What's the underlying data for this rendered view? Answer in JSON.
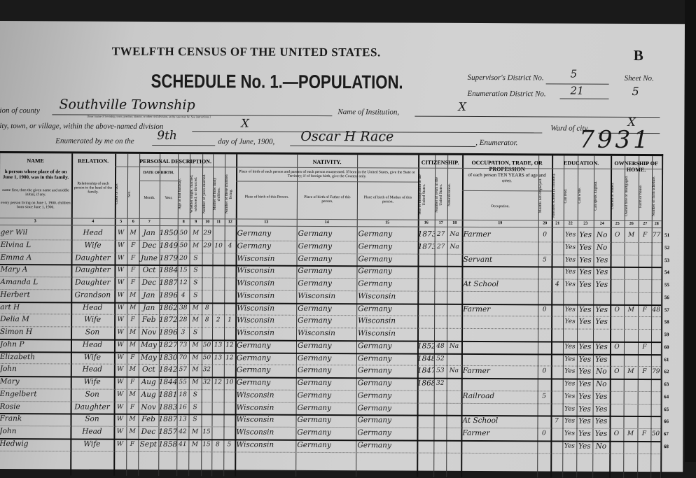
{
  "header": {
    "title": "TWELFTH CENSUS OF THE UNITED STATES.",
    "schedule": "SCHEDULE No. 1.—POPULATION.",
    "sheet_letter": "B",
    "supervisor_label": "Supervisor's District No.",
    "supervisor_value": "5",
    "enumeration_label": "Enumeration District No.",
    "enumeration_value": "21",
    "sheet_label": "Sheet No.",
    "sheet_value": "5",
    "division_label": "ion of county",
    "division_value": "Southville Township",
    "division_note": "[Insert name of township, town, precinct, district, or other civil division, as the case may be. See instructions.]",
    "institution_label": "Name of Institution,",
    "institution_value": "X",
    "city_label": "ity, town, or village, within the above-named division",
    "city_value": "X",
    "ward_label": "Ward of city,",
    "ward_value": "X",
    "enumerated_label": "Enumerated by me on the",
    "enumerated_day": "9th",
    "enumerated_mid": "day of June, 1900,",
    "enumerator_value": "Oscar H Race",
    "enumerator_label": ", Enumerator.",
    "stamp_number": "7931"
  },
  "columns": {
    "groups": [
      "NAME",
      "RELATION.",
      "PERSONAL DESCRIPTION.",
      "NATIVITY.",
      "CITIZENSHIP.",
      "OCCUPATION, TRADE, OR PROFESSION",
      "EDUCATION.",
      "OWNERSHIP OF HOME."
    ],
    "name_desc": "h person whose place of de on June 1, 1900, was in this family.",
    "name_desc2": "name first, then the given name and middle initial, if any.",
    "name_desc3": "every person living on June 1, 1900. children born since June 1, 1900.",
    "relation_desc": "Relationship of each person to the head of the family.",
    "date_of_birth": "DATE OF BIRTH.",
    "month": "Month.",
    "year": "Year.",
    "nativity_desc": "Place of birth of each person and parents of each person enumerated. If born in the United States, give the State or Territory; if of foreign birth, give the Country only.",
    "birth_person": "Place of birth of this Person.",
    "birth_father": "Place of birth of Father of this person.",
    "birth_mother": "Place of birth of Mother of this person.",
    "occupation_desc": "of each person TEN YEARS of age and over.",
    "occupation": "Occupation.",
    "vertical": {
      "color": "Color or race.",
      "sex": "Sex.",
      "age": "Age at last birthday.",
      "marital": "Whether single, married, widowed, or divorced.",
      "years_married": "Number of years married.",
      "mother_of": "Mother of how many children.",
      "children_living": "Number of these children living.",
      "immigration": "Year of immigration to the United States.",
      "years_us": "Number of years in the United States.",
      "naturalization": "Naturalization.",
      "months_unemployed": "Months not employed.",
      "attended": "Attended school (in months).",
      "read": "Can read.",
      "write": "Can write.",
      "english": "Can speak English.",
      "owned": "Owned or rented.",
      "free": "Owned free or mortgaged.",
      "farm": "Farm or house.",
      "farm_schedule": "Number of farm schedule."
    },
    "numbers": [
      "3",
      "4",
      "5",
      "6",
      "7",
      "",
      "8",
      "9",
      "10",
      "11",
      "12",
      "13",
      "14",
      "15",
      "16",
      "17",
      "18",
      "19",
      "20",
      "21",
      "22",
      "23",
      "24",
      "25",
      "26",
      "27",
      "28"
    ]
  },
  "rows": [
    {
      "line": "51",
      "c": [
        "ger Wil",
        "Head",
        "W",
        "M",
        "Jan",
        "1850",
        "50",
        "M",
        "29",
        "",
        "",
        "Germany",
        "Germany",
        "Germany",
        "1873",
        "27",
        "Na",
        "Farmer",
        "0",
        "",
        "Yes",
        "Yes",
        "No",
        "O",
        "M",
        "F",
        "77"
      ]
    },
    {
      "line": "52",
      "c": [
        "Elvina L",
        "Wife",
        "W",
        "F",
        "Dec",
        "1849",
        "50",
        "M",
        "29",
        "10",
        "4",
        "Germany",
        "Germany",
        "Germany",
        "1873",
        "27",
        "Na",
        "",
        "",
        "",
        "Yes",
        "Yes",
        "No",
        "",
        "",
        "",
        ""
      ]
    },
    {
      "line": "53",
      "c": [
        "Emma A",
        "Daughter",
        "W",
        "F",
        "June",
        "1879",
        "20",
        "S",
        "",
        "",
        "",
        "Wisconsin",
        "Germany",
        "Germany",
        "",
        "",
        "",
        "Servant",
        "5",
        "",
        "Yes",
        "Yes",
        "Yes",
        "",
        "",
        "",
        ""
      ]
    },
    {
      "line": "54",
      "c": [
        "Mary A",
        "Daughter",
        "W",
        "F",
        "Oct",
        "1884",
        "15",
        "S",
        "",
        "",
        "",
        "Wisconsin",
        "Germany",
        "Germany",
        "",
        "",
        "",
        "",
        "",
        "",
        "Yes",
        "Yes",
        "Yes",
        "",
        "",
        "",
        ""
      ]
    },
    {
      "line": "55",
      "c": [
        "Amanda L",
        "Daughter",
        "W",
        "F",
        "Dec",
        "1887",
        "12",
        "S",
        "",
        "",
        "",
        "Wisconsin",
        "Germany",
        "Germany",
        "",
        "",
        "",
        "At School",
        "",
        "4",
        "Yes",
        "Yes",
        "Yes",
        "",
        "",
        "",
        ""
      ]
    },
    {
      "line": "56",
      "c": [
        "Herbert",
        "Grandson",
        "W",
        "M",
        "Jan",
        "1896",
        "4",
        "S",
        "",
        "",
        "",
        "Wisconsin",
        "Wisconsin",
        "Wisconsin",
        "",
        "",
        "",
        "",
        "",
        "",
        "",
        "",
        "",
        "",
        "",
        "",
        ""
      ]
    },
    {
      "line": "57",
      "c": [
        "art H",
        "Head",
        "W",
        "M",
        "Jan",
        "1862",
        "38",
        "M",
        "8",
        "",
        "",
        "Wisconsin",
        "Germany",
        "Germany",
        "",
        "",
        "",
        "Farmer",
        "0",
        "",
        "Yes",
        "Yes",
        "Yes",
        "O",
        "M",
        "F",
        "48"
      ]
    },
    {
      "line": "58",
      "c": [
        "Delia M",
        "Wife",
        "W",
        "F",
        "Feb",
        "1872",
        "28",
        "M",
        "8",
        "2",
        "1",
        "Wisconsin",
        "Germany",
        "Wisconsin",
        "",
        "",
        "",
        "",
        "",
        "",
        "Yes",
        "Yes",
        "Yes",
        "",
        "",
        "",
        ""
      ]
    },
    {
      "line": "59",
      "c": [
        "Simon H",
        "Son",
        "W",
        "M",
        "Nov",
        "1896",
        "3",
        "S",
        "",
        "",
        "",
        "Wisconsin",
        "Wisconsin",
        "Wisconsin",
        "",
        "",
        "",
        "",
        "",
        "",
        "",
        "",
        "",
        "",
        "",
        "",
        ""
      ]
    },
    {
      "line": "60",
      "c": [
        "John P",
        "Head",
        "W",
        "M",
        "May",
        "1827",
        "73",
        "M",
        "50",
        "13",
        "12",
        "Germany",
        "Germany",
        "Germany",
        "1852",
        "48",
        "Na",
        "",
        "",
        "",
        "Yes",
        "Yes",
        "Yes",
        "O",
        "",
        "F",
        ""
      ]
    },
    {
      "line": "61",
      "c": [
        "Elizabeth",
        "Wife",
        "W",
        "F",
        "May",
        "1830",
        "70",
        "M",
        "50",
        "13",
        "12",
        "Germany",
        "Germany",
        "Germany",
        "1848",
        "52",
        "",
        "",
        "",
        "",
        "Yes",
        "Yes",
        "Yes",
        "",
        "",
        "",
        ""
      ]
    },
    {
      "line": "62",
      "c": [
        "John",
        "Head",
        "W",
        "M",
        "Oct",
        "1842",
        "57",
        "M",
        "32",
        "",
        "",
        "Germany",
        "Germany",
        "Germany",
        "1847",
        "53",
        "Na",
        "Farmer",
        "0",
        "",
        "Yes",
        "Yes",
        "No",
        "O",
        "M",
        "F",
        "79"
      ]
    },
    {
      "line": "63",
      "c": [
        "Mary",
        "Wife",
        "W",
        "F",
        "Aug",
        "1844",
        "55",
        "M",
        "32",
        "12",
        "10",
        "Germany",
        "Germany",
        "Germany",
        "1868",
        "32",
        "",
        "",
        "",
        "",
        "Yes",
        "Yes",
        "No",
        "",
        "",
        "",
        ""
      ]
    },
    {
      "line": "64",
      "c": [
        "Engelbert",
        "Son",
        "W",
        "M",
        "Aug",
        "1881",
        "18",
        "S",
        "",
        "",
        "",
        "Wisconsin",
        "Germany",
        "Germany",
        "",
        "",
        "",
        "Railroad",
        "5",
        "",
        "Yes",
        "Yes",
        "Yes",
        "",
        "",
        "",
        ""
      ]
    },
    {
      "line": "65",
      "c": [
        "Rosie",
        "Daughter",
        "W",
        "F",
        "Nov",
        "1883",
        "16",
        "S",
        "",
        "",
        "",
        "Wisconsin",
        "Germany",
        "Germany",
        "",
        "",
        "",
        "",
        "",
        "",
        "Yes",
        "Yes",
        "Yes",
        "",
        "",
        "",
        ""
      ]
    },
    {
      "line": "66",
      "c": [
        "Frank",
        "Son",
        "W",
        "M",
        "Feb",
        "1887",
        "13",
        "S",
        "",
        "",
        "",
        "Wisconsin",
        "Germany",
        "Germany",
        "",
        "",
        "",
        "At School",
        "",
        "7",
        "Yes",
        "Yes",
        "Yes",
        "",
        "",
        "",
        ""
      ]
    },
    {
      "line": "67",
      "c": [
        "John",
        "Head",
        "W",
        "M",
        "Dec",
        "1857",
        "42",
        "M",
        "15",
        "",
        "",
        "Wisconsin",
        "Germany",
        "Germany",
        "",
        "",
        "",
        "Farmer",
        "0",
        "",
        "Yes",
        "Yes",
        "Yes",
        "O",
        "M",
        "F",
        "50"
      ]
    },
    {
      "line": "68",
      "c": [
        "Hedwig",
        "Wife",
        "W",
        "F",
        "Sept",
        "1858",
        "41",
        "M",
        "15",
        "8",
        "5",
        "Wisconsin",
        "Germany",
        "Germany",
        "",
        "",
        "",
        "",
        "",
        "",
        "Yes",
        "Yes",
        "No",
        "",
        "",
        "",
        ""
      ]
    }
  ]
}
